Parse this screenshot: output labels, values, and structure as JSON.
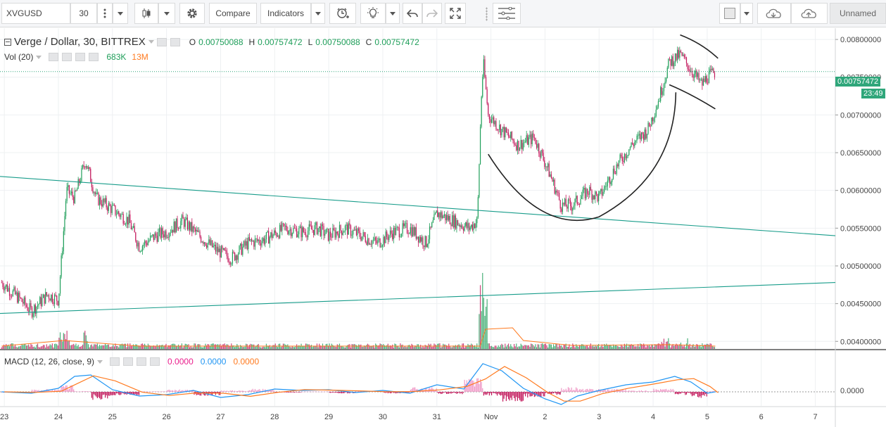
{
  "toolbar": {
    "symbol": "XVGUSD",
    "interval": "30",
    "compare_label": "Compare",
    "indicators_label": "Indicators",
    "layout_name": "Unnamed",
    "icons": [
      "bars-menu-icon",
      "candles-icon",
      "settings-gear-icon",
      "alert-clock-icon",
      "theme-bulb-icon",
      "undo-icon",
      "redo-icon",
      "fullscreen-icon",
      "drawing-list-icon",
      "color-square-icon",
      "cloud-save-icon",
      "cloud-load-icon"
    ]
  },
  "legend": {
    "title": "Verge / Dollar, 30, BITTREX",
    "o_label": "O",
    "o_value": "0.00750088",
    "h_label": "H",
    "h_value": "0.00757472",
    "l_label": "L",
    "l_value": "0.00750088",
    "c_label": "C",
    "c_value": "0.00757472",
    "vol_label": "Vol (20)",
    "vol_value": "683K",
    "vol_ma_value": "13M",
    "macd_label": "MACD (12, 26, close, 9)",
    "macd_hist": "0.0000",
    "macd_line": "0.0000",
    "macd_signal": "0.0000"
  },
  "price_tag": {
    "value": "0.00757472",
    "countdown": "23:49",
    "partial_label": "0.007"
  },
  "macd_axis_label": "0.0000",
  "colors": {
    "up": "#1e9e59",
    "down": "#c2185b",
    "trend": "#179c8a",
    "macd": "#2196f3",
    "signal": "#ff7a1f",
    "vol_ma": "#ff7a1f",
    "tag": "#2fa67a"
  },
  "chart_data": {
    "type": "candlestick",
    "y_ticks": [
      "0.00800000",
      "0.00750000",
      "0.00700000",
      "0.00650000",
      "0.00600000",
      "0.00550000",
      "0.00500000",
      "0.00450000",
      "0.00400000"
    ],
    "y_tick_values": [
      0.008,
      0.0075,
      0.007,
      0.0065,
      0.006,
      0.0055,
      0.005,
      0.0045,
      0.004
    ],
    "ylim": [
      0.0039,
      0.00815
    ],
    "x_ticks": [
      "23",
      "24",
      "25",
      "26",
      "27",
      "28",
      "29",
      "30",
      "31",
      "Nov",
      "2",
      "3",
      "4",
      "5",
      "6",
      "7"
    ],
    "x_tick_days": [
      23,
      24,
      25,
      26,
      27,
      28,
      29,
      30,
      31,
      32,
      33,
      34,
      35,
      36,
      37,
      38
    ],
    "xlim": [
      22.92,
      38.37
    ],
    "price_path": [
      [
        22.95,
        0.00478
      ],
      [
        23.3,
        0.00455
      ],
      [
        23.5,
        0.0044
      ],
      [
        23.8,
        0.00462
      ],
      [
        24.0,
        0.00455
      ],
      [
        24.1,
        0.0055
      ],
      [
        24.15,
        0.006
      ],
      [
        24.3,
        0.0059
      ],
      [
        24.5,
        0.0064
      ],
      [
        24.7,
        0.0059
      ],
      [
        25.0,
        0.00575
      ],
      [
        25.3,
        0.0056
      ],
      [
        25.5,
        0.00525
      ],
      [
        25.8,
        0.0054
      ],
      [
        26.0,
        0.00545
      ],
      [
        26.3,
        0.0056
      ],
      [
        26.6,
        0.0054
      ],
      [
        26.9,
        0.00522
      ],
      [
        27.2,
        0.0051
      ],
      [
        27.5,
        0.0053
      ],
      [
        27.8,
        0.00535
      ],
      [
        28.2,
        0.0055
      ],
      [
        28.5,
        0.00545
      ],
      [
        28.8,
        0.0055
      ],
      [
        29.0,
        0.0054
      ],
      [
        29.3,
        0.0055
      ],
      [
        29.6,
        0.0054
      ],
      [
        29.9,
        0.0053
      ],
      [
        30.2,
        0.00545
      ],
      [
        30.5,
        0.0055
      ],
      [
        30.8,
        0.0053
      ],
      [
        31.0,
        0.0057
      ],
      [
        31.3,
        0.0056
      ],
      [
        31.6,
        0.0055
      ],
      [
        31.75,
        0.0056
      ],
      [
        31.82,
        0.0072
      ],
      [
        31.86,
        0.0077
      ],
      [
        31.95,
        0.007
      ],
      [
        32.2,
        0.0068
      ],
      [
        32.5,
        0.0066
      ],
      [
        32.8,
        0.0067
      ],
      [
        33.1,
        0.0062
      ],
      [
        33.3,
        0.0058
      ],
      [
        33.5,
        0.0058
      ],
      [
        33.8,
        0.006
      ],
      [
        34.0,
        0.0059
      ],
      [
        34.3,
        0.0063
      ],
      [
        34.6,
        0.0066
      ],
      [
        34.9,
        0.0068
      ],
      [
        35.1,
        0.0072
      ],
      [
        35.3,
        0.0077
      ],
      [
        35.5,
        0.0078
      ],
      [
        35.7,
        0.0076
      ],
      [
        35.9,
        0.0074
      ],
      [
        36.0,
        0.0075
      ],
      [
        36.15,
        0.00757
      ]
    ],
    "trendlines": [
      {
        "name": "upper",
        "points": [
          [
            22.92,
            0.006185
          ],
          [
            38.37,
            0.0054
          ]
        ]
      },
      {
        "name": "lower",
        "points": [
          [
            22.92,
            0.00437
          ],
          [
            38.37,
            0.00478
          ]
        ]
      }
    ],
    "annotations": [
      "cup-arc",
      "handle-upper",
      "handle-lower"
    ]
  }
}
